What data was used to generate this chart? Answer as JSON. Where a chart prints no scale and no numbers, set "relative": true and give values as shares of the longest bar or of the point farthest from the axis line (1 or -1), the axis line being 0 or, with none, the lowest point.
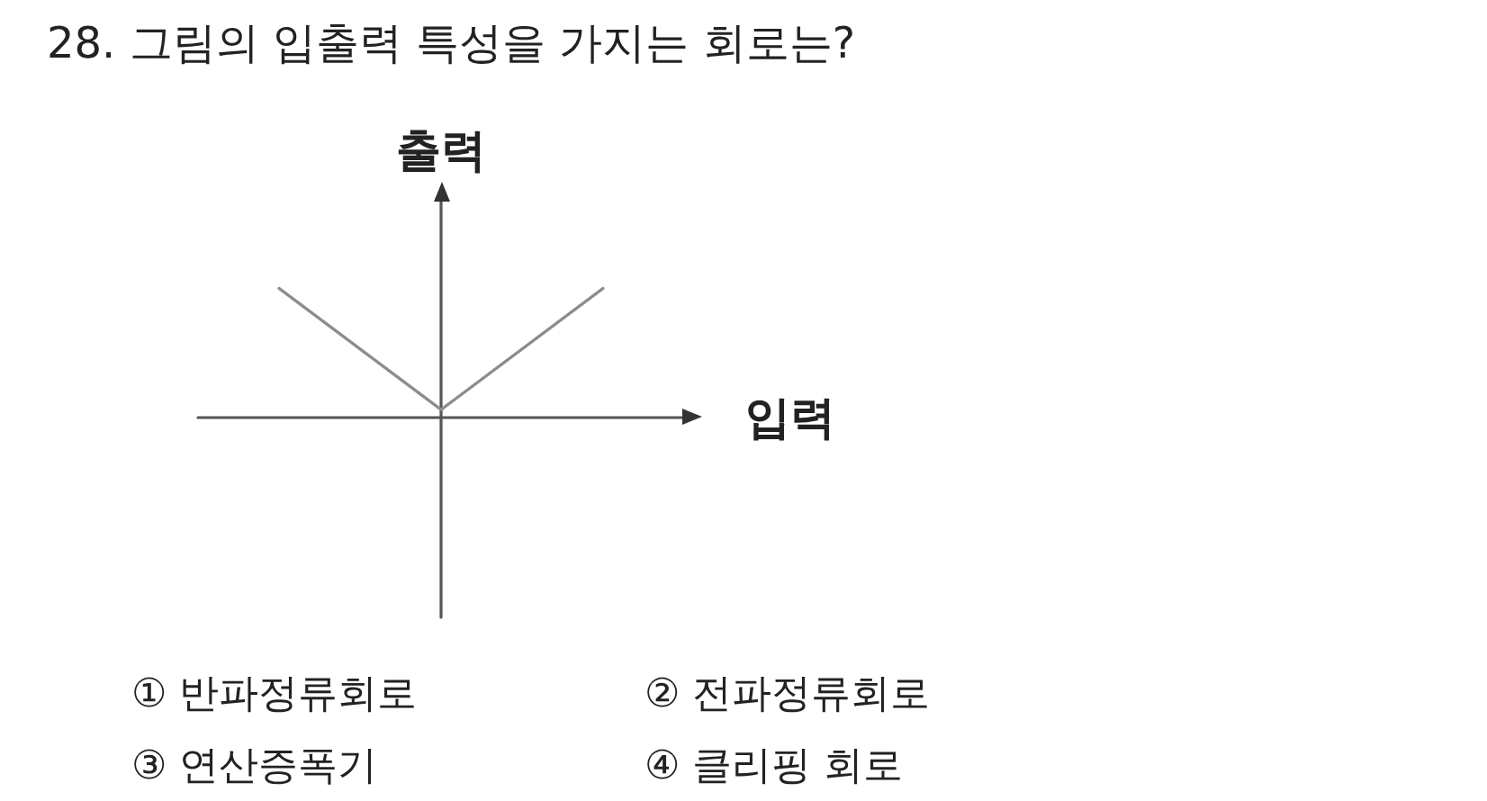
{
  "chart_data": {
    "type": "line",
    "title": "28. 그림의 입출력 특성을 가지는 회로는?",
    "xlabel": "입력",
    "ylabel": "출력",
    "categories": [
      null,
      null,
      null
    ],
    "relative": true,
    "series": [
      {
        "color": "#8c8c8c",
        "values": [
          1,
          0.06,
          1
        ]
      }
    ],
    "marker": "none",
    "line_style": "solid",
    "annotations": [
      "① 반파정류회로",
      "② 전파정류회로",
      "③ 연산증폭기",
      "④ 클리핑 회로"
    ]
  }
}
